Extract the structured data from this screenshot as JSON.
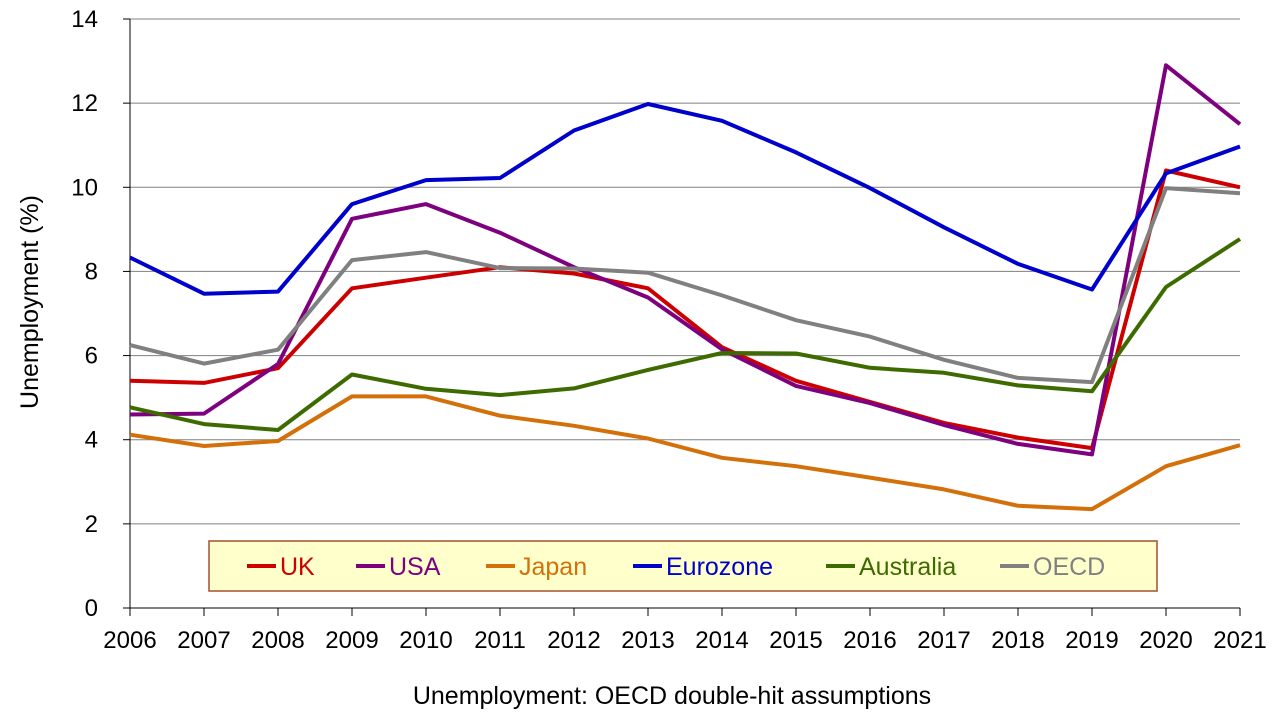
{
  "chart_data": {
    "type": "line",
    "xlabel": "Unemployment: OECD double-hit assumptions",
    "ylabel": "Unemployment (%)",
    "ylim": [
      0,
      14
    ],
    "yticks": [
      0,
      2,
      4,
      6,
      8,
      10,
      12,
      14
    ],
    "grid": "horizontal",
    "legend_position": "bottom-center",
    "categories": [
      "2006",
      "2007",
      "2008",
      "2009",
      "2010",
      "2011",
      "2012",
      "2013",
      "2014",
      "2015",
      "2016",
      "2017",
      "2018",
      "2019",
      "2020",
      "2021"
    ],
    "series": [
      {
        "name": "UK",
        "color": "#cc0000",
        "values": [
          5.4,
          5.35,
          5.7,
          7.6,
          7.85,
          8.1,
          7.95,
          7.6,
          6.2,
          5.4,
          4.9,
          4.4,
          4.05,
          3.8,
          10.4,
          10.0
        ]
      },
      {
        "name": "USA",
        "color": "#7f007f",
        "values": [
          4.6,
          4.62,
          5.8,
          9.25,
          9.6,
          8.92,
          8.1,
          7.38,
          6.15,
          5.28,
          4.87,
          4.35,
          3.9,
          3.65,
          12.9,
          11.5
        ]
      },
      {
        "name": "Japan",
        "color": "#d4700a",
        "values": [
          4.12,
          3.85,
          3.97,
          5.03,
          5.03,
          4.57,
          4.33,
          4.03,
          3.57,
          3.37,
          3.1,
          2.82,
          2.43,
          2.35,
          3.37,
          3.87
        ]
      },
      {
        "name": "Eurozone",
        "color": "#0000cc",
        "values": [
          8.33,
          7.47,
          7.52,
          9.6,
          10.17,
          10.22,
          11.35,
          11.98,
          11.58,
          10.83,
          9.98,
          9.05,
          8.18,
          7.57,
          10.33,
          10.97
        ]
      },
      {
        "name": "Australia",
        "color": "#3d6b00",
        "values": [
          4.77,
          4.37,
          4.23,
          5.55,
          5.21,
          5.06,
          5.22,
          5.66,
          6.06,
          6.05,
          5.71,
          5.59,
          5.29,
          5.15,
          7.63,
          8.77
        ]
      },
      {
        "name": "OECD",
        "color": "#808080",
        "values": [
          6.25,
          5.81,
          6.14,
          8.27,
          8.46,
          8.08,
          8.07,
          7.97,
          7.43,
          6.84,
          6.45,
          5.9,
          5.47,
          5.37,
          9.98,
          9.86
        ]
      }
    ]
  }
}
